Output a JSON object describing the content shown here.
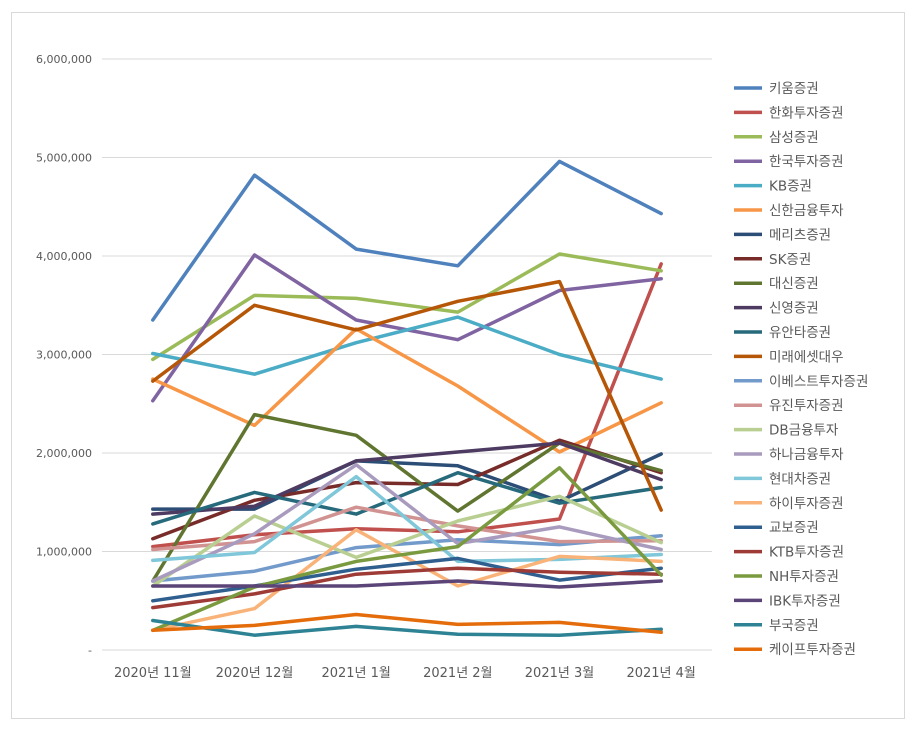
{
  "chart_data": {
    "type": "line",
    "categories": [
      "2020년 11월",
      "2020년 12월",
      "2021년 1월",
      "2021년 2월",
      "2021년 3월",
      "2021년 4월"
    ],
    "ylim": [
      0,
      6000000
    ],
    "yticks": [
      "-",
      "1,000,000",
      "2,000,000",
      "3,000,000",
      "4,000,000",
      "5,000,000",
      "6,000,000"
    ],
    "grid": true,
    "legend_position": "right",
    "series": [
      {
        "name": "키움증권",
        "color": "#4f81bd",
        "values": [
          3350000,
          4820000,
          4070000,
          3900000,
          4960000,
          4430000
        ]
      },
      {
        "name": "한화투자증권",
        "color": "#c0504d",
        "values": [
          1050000,
          1170000,
          1230000,
          1200000,
          1330000,
          3920000
        ]
      },
      {
        "name": "삼성증권",
        "color": "#9bbb59",
        "values": [
          2950000,
          3600000,
          3570000,
          3430000,
          4020000,
          3850000
        ]
      },
      {
        "name": "한국투자증권",
        "color": "#8064a2",
        "values": [
          2530000,
          4010000,
          3350000,
          3150000,
          3650000,
          3770000
        ]
      },
      {
        "name": "KB증권",
        "color": "#4bacc6",
        "values": [
          3010000,
          2800000,
          3120000,
          3380000,
          3000000,
          2750000
        ]
      },
      {
        "name": "신한금융투자",
        "color": "#f79646",
        "values": [
          2750000,
          2280000,
          3260000,
          2680000,
          2010000,
          2510000
        ]
      },
      {
        "name": "메리츠증권",
        "color": "#2c4d75",
        "values": [
          1430000,
          1430000,
          1920000,
          1870000,
          1510000,
          1990000
        ]
      },
      {
        "name": "SK증권",
        "color": "#772c2a",
        "values": [
          1130000,
          1520000,
          1700000,
          1680000,
          2130000,
          1800000
        ]
      },
      {
        "name": "대신증권",
        "color": "#5f7530",
        "values": [
          700000,
          2390000,
          2180000,
          1410000,
          2100000,
          1820000
        ]
      },
      {
        "name": "신영증권",
        "color": "#4d3b62",
        "values": [
          1380000,
          1460000,
          1920000,
          2010000,
          2100000,
          1730000
        ]
      },
      {
        "name": "유안타증권",
        "color": "#276a7c",
        "values": [
          1280000,
          1600000,
          1380000,
          1800000,
          1490000,
          1650000
        ]
      },
      {
        "name": "미래에셋대우",
        "color": "#b65708",
        "values": [
          2730000,
          3500000,
          3250000,
          3540000,
          3740000,
          1420000
        ]
      },
      {
        "name": "이베스트투자증권",
        "color": "#729aca",
        "values": [
          700000,
          800000,
          1040000,
          1120000,
          1070000,
          1160000
        ]
      },
      {
        "name": "유진투자증권",
        "color": "#d19392",
        "values": [
          1020000,
          1100000,
          1450000,
          1260000,
          1100000,
          1110000
        ]
      },
      {
        "name": "DB금융투자",
        "color": "#b9cf91",
        "values": [
          650000,
          1360000,
          940000,
          1310000,
          1560000,
          1090000
        ]
      },
      {
        "name": "하나금융투자",
        "color": "#a99bbd",
        "values": [
          700000,
          1180000,
          1880000,
          1080000,
          1250000,
          1020000
        ]
      },
      {
        "name": "현대차증권",
        "color": "#7fc7d9",
        "values": [
          910000,
          990000,
          1760000,
          900000,
          920000,
          970000
        ]
      },
      {
        "name": "하이투자증권",
        "color": "#f9b378",
        "values": [
          200000,
          420000,
          1220000,
          650000,
          950000,
          900000
        ]
      },
      {
        "name": "교보증권",
        "color": "#2f5f8f",
        "values": [
          500000,
          650000,
          820000,
          930000,
          710000,
          830000
        ]
      },
      {
        "name": "KTB투자증권",
        "color": "#9e3b37",
        "values": [
          430000,
          570000,
          770000,
          830000,
          790000,
          770000
        ]
      },
      {
        "name": "NH투자증권",
        "color": "#7a9a3f",
        "values": [
          200000,
          640000,
          900000,
          1050000,
          1850000,
          760000
        ]
      },
      {
        "name": "IBK투자증권",
        "color": "#5b4477",
        "values": [
          650000,
          650000,
          650000,
          700000,
          640000,
          700000
        ]
      },
      {
        "name": "부국증권",
        "color": "#2d8294",
        "values": [
          300000,
          150000,
          240000,
          160000,
          150000,
          210000
        ]
      },
      {
        "name": "케이프투자증권",
        "color": "#e46c0a",
        "values": [
          200000,
          250000,
          360000,
          260000,
          280000,
          180000
        ]
      }
    ]
  }
}
